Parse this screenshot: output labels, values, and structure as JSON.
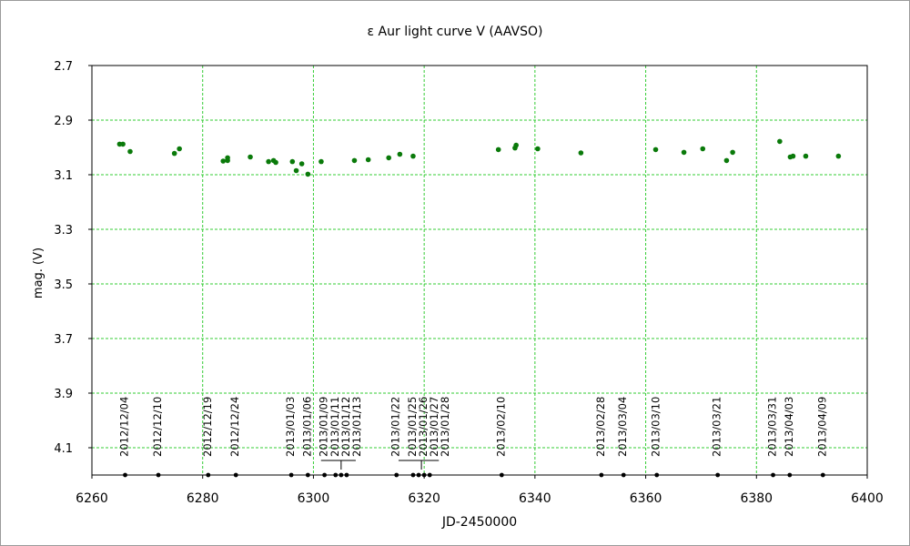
{
  "chart_data": {
    "type": "scatter",
    "title": "ε Aur   light curve  V (AAVSO)",
    "xlabel": "JD-2450000",
    "ylabel": "mag. (V)",
    "xlim": [
      6260,
      6400
    ],
    "ylim": [
      2.7,
      4.2
    ],
    "y_inverted": true,
    "grid": true,
    "grid_color": "#33cc33",
    "marker_color": "#0a7a0a",
    "observation_marker_color": "#000000",
    "xticks": [
      "6260",
      "6280",
      "6300",
      "6320",
      "6340",
      "6360",
      "6380",
      "6400"
    ],
    "xtick_values": [
      6260,
      6280,
      6300,
      6320,
      6340,
      6360,
      6380,
      6400
    ],
    "yticks": [
      "2.7",
      "2.9",
      "3.1",
      "3.3",
      "3.5",
      "3.7",
      "3.9",
      "4.1"
    ],
    "ytick_values": [
      2.7,
      2.9,
      3.1,
      3.3,
      3.5,
      3.7,
      3.9,
      4.1
    ],
    "series": [
      {
        "x": [
          6265.0,
          6265.6,
          6266.9,
          6274.9,
          6275.8,
          6283.7,
          6284.5,
          6284.5,
          6288.6,
          6291.9,
          6292.8,
          6293.2,
          6296.2,
          6296.9,
          6297.9,
          6299.0,
          6301.4,
          6307.4,
          6309.9,
          6313.6,
          6315.6,
          6318.0,
          6333.4,
          6336.4,
          6336.6,
          6340.5,
          6348.3,
          6361.8,
          6366.9,
          6370.3,
          6374.6,
          6375.7,
          6384.2,
          6386.1,
          6386.6,
          6388.9,
          6394.8
        ],
        "y": [
          2.988,
          2.988,
          3.015,
          3.022,
          3.005,
          3.05,
          3.038,
          3.048,
          3.035,
          3.052,
          3.048,
          3.055,
          3.052,
          3.085,
          3.06,
          3.098,
          3.052,
          3.048,
          3.045,
          3.038,
          3.025,
          3.032,
          3.008,
          3.002,
          2.992,
          3.005,
          3.02,
          3.008,
          3.018,
          3.005,
          3.048,
          3.018,
          2.978,
          3.035,
          3.032,
          3.032,
          3.032
        ]
      }
    ],
    "observation_dates": [
      {
        "date": "2012/12/04",
        "x": 6266.0
      },
      {
        "date": "2012/12/10",
        "x": 6272.0
      },
      {
        "date": "2012/12/19",
        "x": 6281.0
      },
      {
        "date": "2012/12/24",
        "x": 6286.0
      },
      {
        "date": "2013/01/03",
        "x": 6296.0
      },
      {
        "date": "2013/01/06",
        "x": 6299.0
      },
      {
        "date": "2013/01/09",
        "x": 6302.0
      },
      {
        "date": "2013/01/11",
        "x": 6304.0
      },
      {
        "date": "2013/01/12",
        "x": 6305.0
      },
      {
        "date": "2013/01/13",
        "x": 6306.0
      },
      {
        "date": "2013/01/22",
        "x": 6315.0
      },
      {
        "date": "2013/01/25",
        "x": 6318.0
      },
      {
        "date": "2013/01/26",
        "x": 6319.0
      },
      {
        "date": "2013/01/27",
        "x": 6320.0
      },
      {
        "date": "2013/01/28",
        "x": 6321.0
      },
      {
        "date": "2013/02/10",
        "x": 6334.0
      },
      {
        "date": "2013/02/28",
        "x": 6352.0
      },
      {
        "date": "2013/03/04",
        "x": 6356.0
      },
      {
        "date": "2013/03/10",
        "x": 6362.0
      },
      {
        "date": "2013/03/21",
        "x": 6373.0
      },
      {
        "date": "2013/03/31",
        "x": 6383.0
      },
      {
        "date": "2013/04/03",
        "x": 6386.0
      },
      {
        "date": "2013/04/09",
        "x": 6392.0
      }
    ],
    "observation_mag": 4.2
  }
}
